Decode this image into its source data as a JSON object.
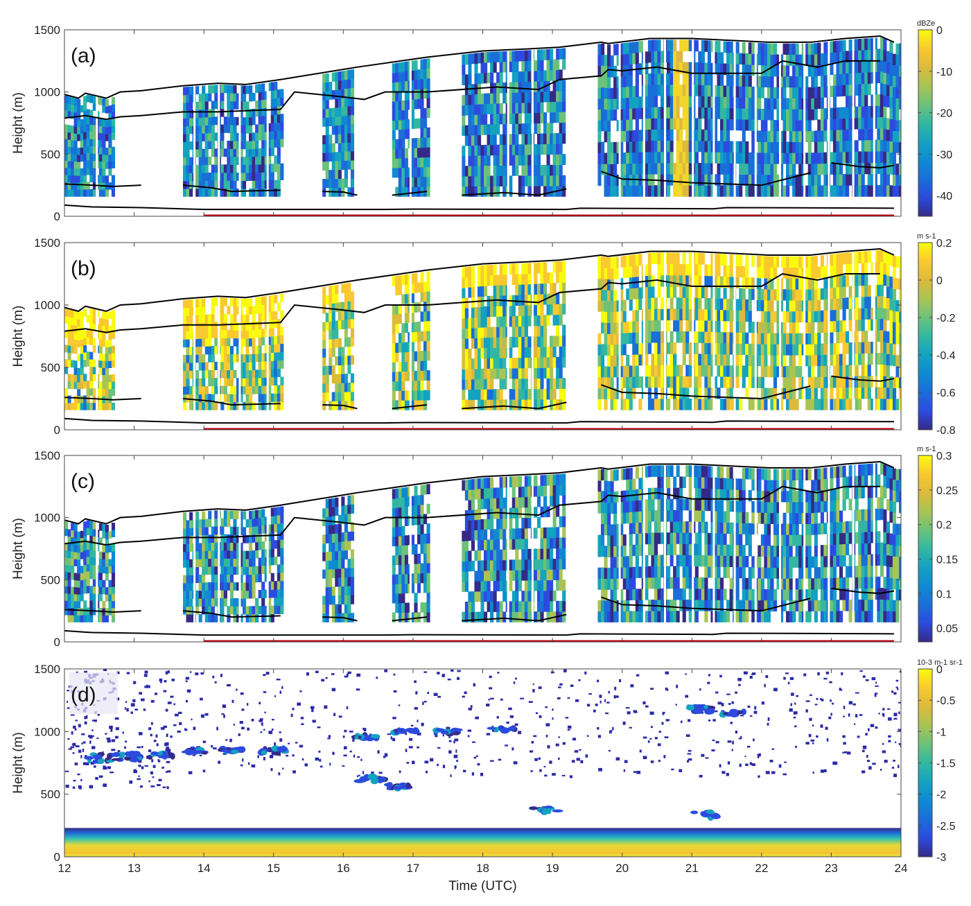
{
  "chart_data": [
    {
      "id": "a",
      "type": "heatmap",
      "panel_label": "(a)",
      "ylabel": "Height (m)",
      "xlim": [
        12,
        24
      ],
      "ylim": [
        0,
        1500
      ],
      "yticks": [
        0,
        500,
        1000,
        1500
      ],
      "colorbar": {
        "unit": "dBZe",
        "ticks": [
          "0",
          "-10",
          "-20",
          "-30",
          "-40"
        ],
        "tick_values": [
          0,
          -10,
          -20,
          -30,
          -40
        ],
        "range": [
          -45,
          0
        ]
      },
      "data_segments": [
        [
          12.0,
          12.7
        ],
        [
          13.7,
          15.1
        ],
        [
          15.7,
          16.15
        ],
        [
          16.7,
          17.2
        ],
        [
          17.7,
          19.15
        ],
        [
          19.65,
          24.0
        ]
      ],
      "lines": [
        {
          "name": "cloud top",
          "points": [
            [
              12,
              980
            ],
            [
              12.2,
              950
            ],
            [
              12.3,
              990
            ],
            [
              12.6,
              950
            ],
            [
              12.8,
              1000
            ],
            [
              13.1,
              1010
            ],
            [
              13.7,
              1050
            ],
            [
              14.2,
              1070
            ],
            [
              14.6,
              1060
            ],
            [
              15.1,
              1100
            ],
            [
              16.2,
              1200
            ],
            [
              17.2,
              1280
            ],
            [
              18,
              1330
            ],
            [
              18.6,
              1345
            ],
            [
              19.1,
              1360
            ],
            [
              19.7,
              1400
            ],
            [
              19.8,
              1390
            ],
            [
              20.4,
              1430
            ],
            [
              21,
              1430
            ],
            [
              22.1,
              1400
            ],
            [
              22.7,
              1400
            ],
            [
              23.2,
              1430
            ],
            [
              23.7,
              1450
            ],
            [
              23.9,
              1400
            ]
          ]
        },
        {
          "name": "inversion",
          "points": [
            [
              12,
              790
            ],
            [
              12.3,
              810
            ],
            [
              12.6,
              780
            ],
            [
              12.8,
              800
            ],
            [
              13.1,
              810
            ],
            [
              13.7,
              840
            ],
            [
              14.2,
              840
            ],
            [
              15.1,
              860
            ],
            [
              15.3,
              1000
            ],
            [
              16,
              960
            ],
            [
              16.3,
              940
            ],
            [
              16.6,
              1000
            ],
            [
              17.2,
              1000
            ],
            [
              18.2,
              1040
            ],
            [
              18.8,
              1020
            ],
            [
              19.1,
              1100
            ],
            [
              19.7,
              1130
            ],
            [
              19.8,
              1180
            ],
            [
              20,
              1170
            ],
            [
              20.5,
              1200
            ],
            [
              21,
              1150
            ],
            [
              21.5,
              1150
            ],
            [
              22,
              1150
            ],
            [
              22.3,
              1250
            ],
            [
              22.8,
              1200
            ],
            [
              23.2,
              1250
            ],
            [
              23.7,
              1250
            ]
          ]
        },
        {
          "name": "cloud base",
          "segments": [
            [
              [
                12,
                260
              ],
              [
                12.4,
                250
              ],
              [
                12.7,
                240
              ],
              [
                13.1,
                250
              ]
            ],
            [
              [
                13.7,
                250
              ],
              [
                14.1,
                230
              ],
              [
                14.4,
                200
              ],
              [
                15.1,
                210
              ]
            ],
            [
              [
                15.7,
                200
              ],
              [
                16,
                195
              ],
              [
                16.2,
                170
              ]
            ],
            [
              [
                16.7,
                170
              ],
              [
                17.2,
                200
              ]
            ],
            [
              [
                17.7,
                170
              ],
              [
                18.3,
                190
              ],
              [
                18.8,
                170
              ],
              [
                19.2,
                220
              ]
            ],
            [
              [
                19.7,
                360
              ],
              [
                20,
                300
              ],
              [
                20.5,
                290
              ],
              [
                21,
                270
              ],
              [
                21.5,
                260
              ],
              [
                22,
                250
              ],
              [
                22.7,
                350
              ]
            ],
            [
              [
                23,
                430
              ],
              [
                23.4,
                400
              ],
              [
                23.7,
                390
              ],
              [
                23.9,
                410
              ]
            ]
          ]
        },
        {
          "name": "surface",
          "points": [
            [
              12,
              90
            ],
            [
              12.4,
              75
            ],
            [
              13.1,
              70
            ],
            [
              14,
              55
            ],
            [
              16.6,
              55
            ],
            [
              17,
              58
            ],
            [
              19.2,
              55
            ],
            [
              19.4,
              65
            ],
            [
              21.3,
              60
            ],
            [
              21.5,
              70
            ],
            [
              23.9,
              65
            ]
          ]
        }
      ],
      "period_bar": [
        14,
        23.9
      ]
    },
    {
      "id": "b",
      "type": "heatmap",
      "panel_label": "(b)",
      "ylabel": "Height (m)",
      "xlim": [
        12,
        24
      ],
      "ylim": [
        0,
        1500
      ],
      "yticks": [
        0,
        500,
        1000,
        1500
      ],
      "colorbar": {
        "unit": "m s-1",
        "ticks": [
          "0.2",
          "0",
          "-0.2",
          "-0.4",
          "-0.6",
          "-0.8"
        ],
        "tick_values": [
          0.2,
          0,
          -0.2,
          -0.4,
          -0.6,
          -0.8
        ],
        "range": [
          -0.8,
          0.2
        ]
      },
      "period_bar": [
        14,
        23.9
      ]
    },
    {
      "id": "c",
      "type": "heatmap",
      "panel_label": "(c)",
      "ylabel": "Height (m)",
      "xlim": [
        12,
        24
      ],
      "ylim": [
        0,
        1500
      ],
      "yticks": [
        0,
        500,
        1000,
        1500
      ],
      "colorbar": {
        "unit": "m s-1",
        "ticks": [
          "0.3",
          "0.25",
          "0.2",
          "0.15",
          "0.1",
          "0.05"
        ],
        "tick_values": [
          0.3,
          0.25,
          0.2,
          0.15,
          0.1,
          0.05
        ],
        "range": [
          0.03,
          0.3
        ]
      },
      "period_bar": [
        14,
        23.9
      ]
    },
    {
      "id": "d",
      "type": "heatmap",
      "panel_label": "(d)",
      "ylabel": "Height (m)",
      "xlabel": "Time (UTC)",
      "xlim": [
        12,
        24
      ],
      "xticks": [
        12,
        13,
        14,
        15,
        16,
        17,
        18,
        19,
        20,
        21,
        22,
        23,
        24
      ],
      "ylim": [
        0,
        1500
      ],
      "yticks": [
        0,
        500,
        1000,
        1500
      ],
      "colorbar": {
        "unit": "10-3 m-1 sr-1",
        "ticks": [
          "0",
          "-0.5",
          "-1",
          "-1.5",
          "-2",
          "-2.5",
          "-3"
        ],
        "tick_values": [
          0,
          -0.5,
          -1,
          -1.5,
          -2,
          -2.5,
          -3
        ],
        "range": [
          -3,
          0
        ]
      }
    }
  ]
}
